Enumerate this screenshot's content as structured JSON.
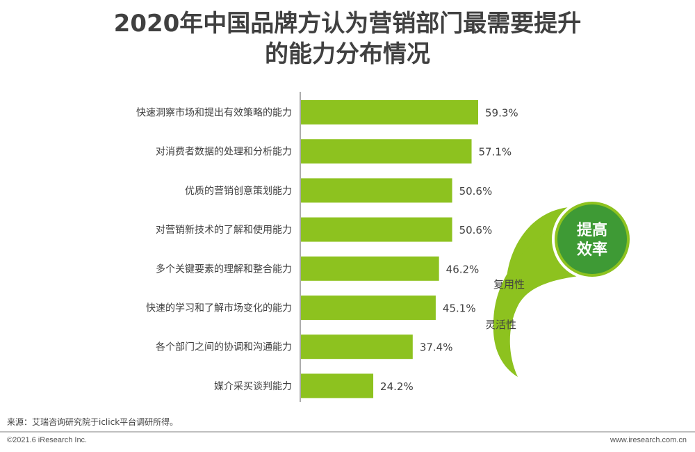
{
  "title_lines": [
    "2020年中国品牌方认为营销部门最需要提升",
    "的能力分布情况"
  ],
  "chart_data": {
    "type": "bar",
    "orientation": "horizontal",
    "categories": [
      "快速洞察市场和提出有效策略的能力",
      "对消费者数据的处理和分析能力",
      "优质的营销创意策划能力",
      "对营销新技术的了解和使用能力",
      "多个关键要素的理解和整合能力",
      "快速的学习和了解市场变化的能力",
      "各个部门之间的协调和沟通能力",
      "媒介采买谈判能力"
    ],
    "values": [
      59.3,
      57.1,
      50.6,
      50.6,
      46.2,
      45.1,
      37.4,
      24.2
    ],
    "value_labels": [
      "59.3%",
      "57.1%",
      "50.6%",
      "50.6%",
      "46.2%",
      "45.1%",
      "37.4%",
      "24.2%"
    ],
    "unit": "%",
    "bar_color": "#8dc21f",
    "xlim": [
      0,
      100
    ],
    "grid": false
  },
  "decoration": {
    "circle_text_lines": [
      "提高",
      "效率"
    ],
    "labels": [
      "复用性",
      "灵活性"
    ],
    "accent_color": "#8dc21f",
    "circle_color": "#3e9a35"
  },
  "footer": {
    "source": "来源：艾瑞咨询研究院于iclick平台调研所得。",
    "copyright": "©2021.6 iResearch Inc.",
    "website": "www.iresearch.com.cn"
  }
}
